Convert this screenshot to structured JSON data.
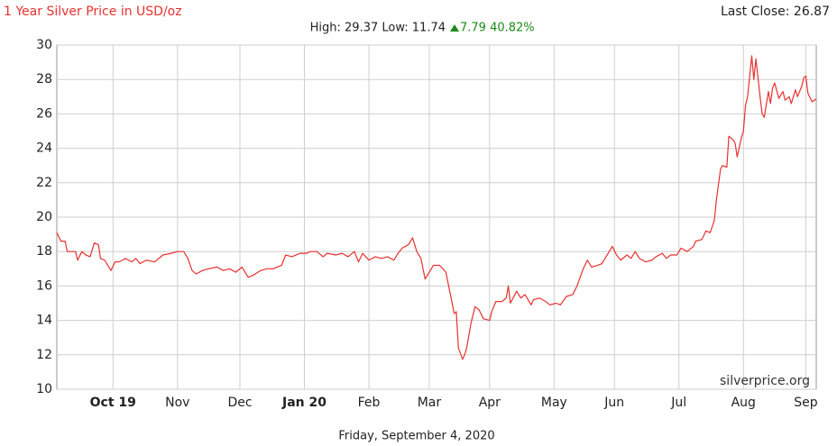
{
  "chart_data": {
    "type": "line",
    "title": "1 Year Silver Price in USD/oz",
    "last_close": "Last Close: 26.87",
    "stats": "High: 29.37 Low: 11.74",
    "change": "7.79 40.82%",
    "watermark": "silverprice.org",
    "date": "Friday, September 4, 2020",
    "x": [
      0,
      2,
      4,
      5,
      9,
      10,
      12,
      14,
      16,
      18,
      20,
      21,
      23,
      26,
      28,
      30,
      33,
      36,
      38,
      40,
      43,
      47,
      51,
      55,
      58,
      61,
      63,
      65,
      67,
      70,
      73,
      77,
      80,
      83,
      86,
      89,
      92,
      94,
      98,
      101,
      104,
      108,
      110,
      113,
      117,
      120,
      122,
      125,
      128,
      130,
      134,
      137,
      140,
      143,
      145,
      147,
      150,
      153,
      156,
      159,
      162,
      164,
      166,
      169,
      171,
      173,
      175,
      177,
      179,
      181,
      184,
      187,
      189,
      191,
      192,
      193,
      195,
      196,
      197,
      199,
      201,
      203,
      205,
      208,
      209,
      211,
      214,
      216,
      217,
      218,
      221,
      223,
      225,
      228,
      229,
      232,
      235,
      237,
      240,
      242,
      245,
      248,
      250,
      253,
      255,
      257,
      260,
      262,
      265,
      267,
      269,
      271,
      274,
      276,
      278,
      280,
      283,
      286,
      288,
      291,
      293,
      295,
      298,
      300,
      303,
      306,
      307,
      310,
      312,
      314,
      316,
      317,
      319,
      320,
      322,
      323,
      325,
      326,
      327,
      329,
      330,
      331,
      332,
      334,
      335,
      336,
      338,
      339,
      340,
      342,
      343,
      344,
      345,
      347,
      349,
      350,
      352,
      353,
      355,
      356,
      358,
      359,
      360,
      361,
      363,
      365
    ],
    "series": [
      {
        "name": "Silver",
        "color": "#e8312f",
        "values": [
          19.1,
          18.6,
          18.6,
          18.0,
          18.0,
          17.5,
          18.0,
          17.8,
          17.7,
          18.5,
          18.4,
          17.6,
          17.5,
          16.9,
          17.4,
          17.4,
          17.6,
          17.4,
          17.6,
          17.3,
          17.5,
          17.4,
          17.8,
          17.9,
          18.0,
          18.0,
          17.6,
          16.9,
          16.7,
          16.9,
          17.0,
          17.1,
          16.9,
          17.0,
          16.8,
          17.1,
          16.5,
          16.6,
          16.9,
          17.0,
          17.0,
          17.2,
          17.8,
          17.7,
          17.9,
          17.9,
          18.0,
          18.0,
          17.7,
          17.9,
          17.8,
          17.9,
          17.7,
          18.0,
          17.4,
          17.9,
          17.5,
          17.7,
          17.6,
          17.7,
          17.5,
          17.9,
          18.2,
          18.4,
          18.8,
          18.0,
          17.6,
          16.4,
          16.8,
          17.2,
          17.2,
          16.8,
          15.6,
          14.4,
          14.5,
          12.4,
          11.74,
          12.0,
          12.4,
          13.8,
          14.8,
          14.6,
          14.1,
          14.0,
          14.5,
          15.1,
          15.1,
          15.3,
          16.0,
          15.0,
          15.7,
          15.3,
          15.5,
          14.9,
          15.2,
          15.3,
          15.1,
          14.9,
          15.0,
          14.9,
          15.4,
          15.5,
          16.0,
          17.0,
          17.5,
          17.1,
          17.2,
          17.3,
          17.9,
          18.3,
          17.8,
          17.5,
          17.8,
          17.6,
          18.0,
          17.6,
          17.4,
          17.5,
          17.7,
          17.9,
          17.6,
          17.8,
          17.8,
          18.2,
          18.0,
          18.3,
          18.6,
          18.7,
          19.2,
          19.1,
          19.8,
          21.0,
          22.8,
          23.0,
          22.9,
          24.7,
          24.5,
          24.3,
          23.5,
          24.6,
          25.0,
          26.5,
          27.0,
          29.37,
          28.0,
          29.2,
          27.0,
          26.0,
          25.8,
          27.3,
          26.6,
          27.5,
          27.8,
          26.9,
          27.3,
          26.8,
          27.0,
          26.6,
          27.4,
          27.0,
          27.6,
          28.1,
          28.2,
          27.2,
          26.7,
          26.87
        ]
      }
    ],
    "xlim": [
      0,
      365
    ],
    "xticks": [
      {
        "value": 27,
        "label": "Oct 19",
        "bold": true
      },
      {
        "value": 58,
        "label": "Nov"
      },
      {
        "value": 88,
        "label": "Dec"
      },
      {
        "value": 119,
        "label": "Jan 20",
        "bold": true
      },
      {
        "value": 150,
        "label": "Feb"
      },
      {
        "value": 179,
        "label": "Mar"
      },
      {
        "value": 208,
        "label": "Apr"
      },
      {
        "value": 239,
        "label": "May"
      },
      {
        "value": 268,
        "label": "Jun"
      },
      {
        "value": 299,
        "label": "Jul"
      },
      {
        "value": 330,
        "label": "Aug"
      },
      {
        "value": 360,
        "label": "Sep"
      }
    ],
    "ylim": [
      10,
      30
    ],
    "yticks": [
      10,
      12,
      14,
      16,
      18,
      20,
      22,
      24,
      26,
      28,
      30
    ],
    "grid": true
  }
}
